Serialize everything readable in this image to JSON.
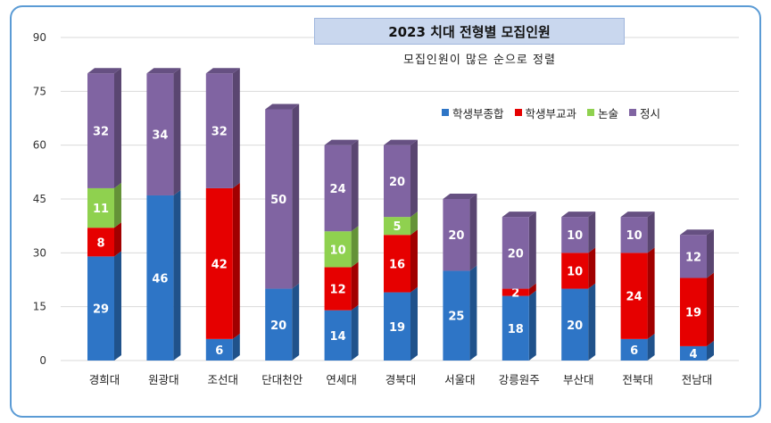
{
  "chart_data": {
    "type": "bar",
    "stacked": true,
    "title": "2023 치대 전형별 모집인원",
    "subtitle": "모집인원이 많은 순으로 정렬",
    "categories": [
      "경희대",
      "원광대",
      "조선대",
      "단대천안",
      "연세대",
      "경북대",
      "서울대",
      "강릉원주",
      "부산대",
      "전북대",
      "전남대"
    ],
    "ylim": [
      0,
      90
    ],
    "yticks": [
      0,
      15,
      30,
      45,
      60,
      75,
      90
    ],
    "grid": true,
    "legend_position": "top-right",
    "series": [
      {
        "name": "학생부종합",
        "color": "#2e75c6",
        "values": [
          29,
          46,
          6,
          20,
          14,
          19,
          25,
          18,
          20,
          6,
          4
        ]
      },
      {
        "name": "학생부교과",
        "color": "#e60000",
        "values": [
          8,
          0,
          42,
          0,
          12,
          16,
          0,
          2,
          10,
          24,
          19
        ]
      },
      {
        "name": "논술",
        "color": "#8fd14f",
        "values": [
          11,
          0,
          0,
          0,
          10,
          5,
          0,
          0,
          0,
          0,
          0
        ]
      },
      {
        "name": "정시",
        "color": "#8064a2",
        "values": [
          32,
          34,
          32,
          50,
          24,
          20,
          20,
          20,
          10,
          10,
          12
        ]
      }
    ]
  }
}
